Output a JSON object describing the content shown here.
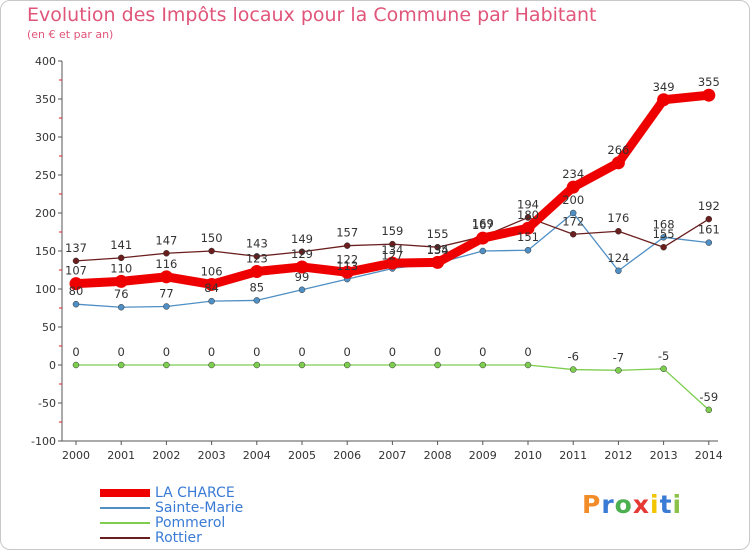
{
  "header": {
    "title": "Evolution des Impôts locaux pour la Commune par Habitant",
    "subtitle": "(en € et par an)"
  },
  "brand": {
    "letters": [
      "P",
      "r",
      "o",
      "x",
      "i",
      "t",
      "i"
    ],
    "colors": [
      "#f28c28",
      "#3a7bd5",
      "#4caf50",
      "#e53935",
      "#f2c500",
      "#3a7bd5",
      "#8bc34a"
    ]
  },
  "chart_data": {
    "type": "line",
    "categories": [
      "2000",
      "2001",
      "2002",
      "2003",
      "2004",
      "2005",
      "2006",
      "2007",
      "2008",
      "2009",
      "2010",
      "2011",
      "2012",
      "2013",
      "2014"
    ],
    "ylim": [
      -100,
      400
    ],
    "yticks": [
      -100,
      -50,
      0,
      50,
      100,
      150,
      200,
      250,
      300,
      350,
      400
    ],
    "grid": false,
    "legend_position": "bottom-left",
    "series": [
      {
        "name": "LA CHARCE",
        "color": "#ee0000",
        "values": [
          107,
          110,
          116,
          106,
          123,
          129,
          122,
          134,
          135,
          167,
          180,
          234,
          266,
          349,
          355
        ]
      },
      {
        "name": "Sainte-Marie",
        "color": "#4f8fc4",
        "values": [
          80,
          76,
          77,
          84,
          85,
          99,
          113,
          127,
          134,
          150,
          151,
          200,
          124,
          168,
          161
        ]
      },
      {
        "name": "Pommerol",
        "color": "#7dce4f",
        "values": [
          0,
          0,
          0,
          0,
          0,
          0,
          0,
          0,
          0,
          0,
          0,
          -6,
          -7,
          -5,
          -59
        ]
      },
      {
        "name": "Rottier",
        "color": "#6b1e1e",
        "values": [
          137,
          141,
          147,
          150,
          143,
          149,
          157,
          159,
          155,
          169,
          194,
          172,
          176,
          155,
          192
        ]
      }
    ],
    "data_labels": [
      {
        "series": 3,
        "labels": [
          "137",
          "141",
          "147",
          "150",
          "143",
          "149",
          "157",
          "159",
          "155",
          "169",
          "194",
          "",
          "",
          "",
          ""
        ]
      },
      {
        "series": 0,
        "labels": [
          "107",
          "110",
          "116",
          "106",
          "123",
          "129",
          "122",
          "134",
          "135",
          "167",
          "180",
          "234",
          "266",
          "349",
          "355"
        ]
      },
      {
        "series": 1,
        "labels": [
          "80",
          "76",
          "77",
          "84",
          "85",
          "99",
          "113",
          "127",
          "134",
          "",
          "151",
          "200",
          "124",
          "168",
          "161"
        ]
      },
      {
        "series": 3,
        "labels": [
          "",
          "",
          "",
          "",
          "",
          "",
          "",
          "",
          "",
          "",
          "",
          "172",
          "176",
          "155",
          "192"
        ]
      },
      {
        "series": 2,
        "labels": [
          "0",
          "0",
          "0",
          "0",
          "0",
          "0",
          "0",
          "0",
          "0",
          "0",
          "0",
          "-6",
          "-7",
          "-5",
          "-59"
        ]
      }
    ]
  }
}
